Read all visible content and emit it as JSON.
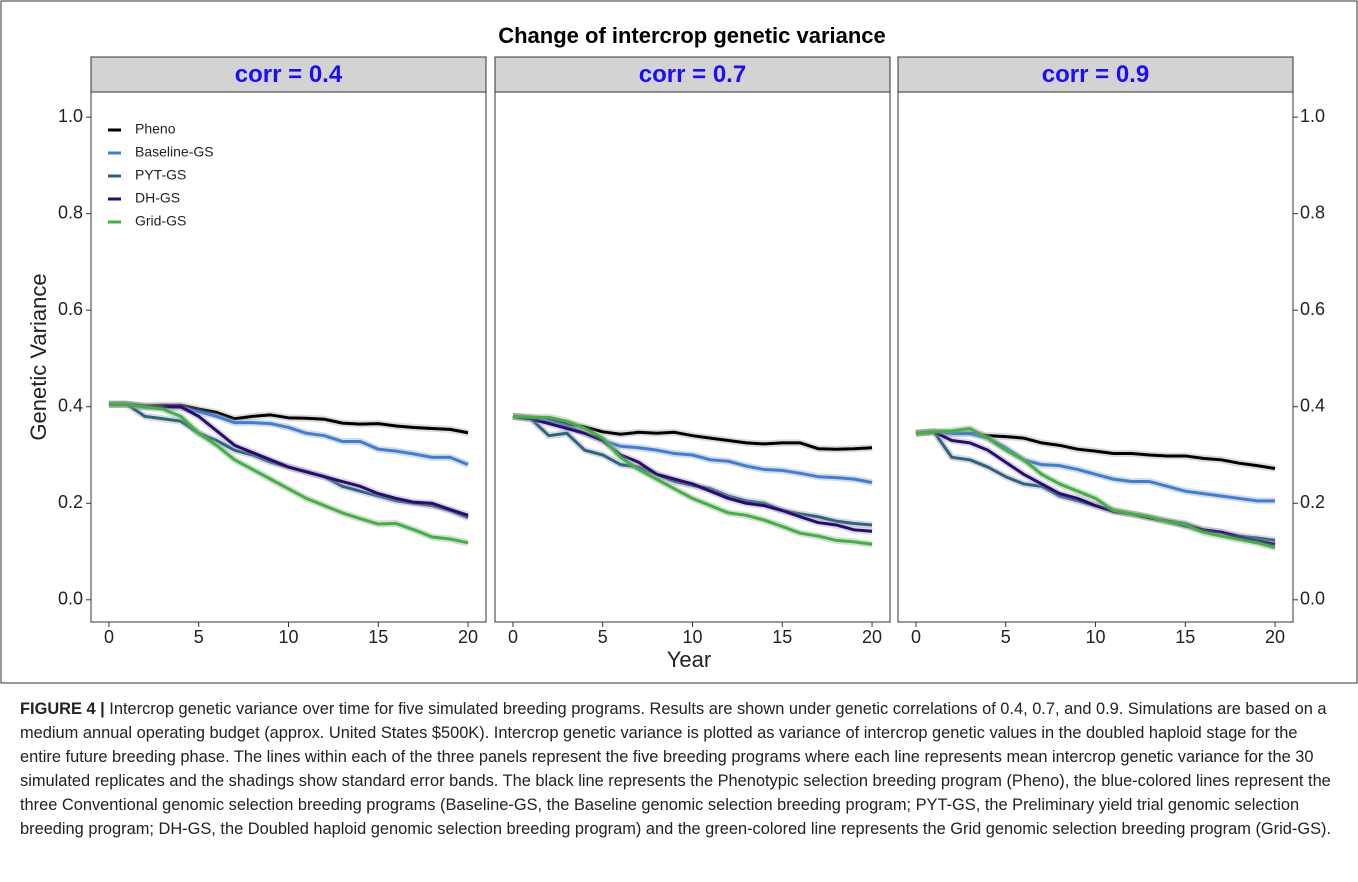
{
  "title": "Change of intercrop genetic variance",
  "x_label": "Year",
  "y_label": "Genetic Variance",
  "chart_data": [
    {
      "type": "line",
      "title": "corr = 0.4",
      "legend": "top-left",
      "x": [
        0,
        1,
        2,
        3,
        4,
        5,
        6,
        7,
        8,
        9,
        10,
        11,
        12,
        13,
        14,
        15,
        16,
        17,
        18,
        19,
        20
      ],
      "xlim": [
        -1,
        21
      ],
      "xticks": [
        0,
        5,
        10,
        15,
        20
      ],
      "ylim": [
        -0.046,
        1.052
      ],
      "yticks": [
        {
          "value": 0,
          "label": "0.0"
        },
        {
          "value": 0.2,
          "label": "0.2"
        },
        {
          "value": 0.4,
          "label": "0.4"
        },
        {
          "value": 0.6,
          "label": "0.6"
        },
        {
          "value": 0.8,
          "label": "0.8"
        },
        {
          "value": 1,
          "label": "1.0"
        }
      ],
      "series": [
        {
          "name": "Pheno",
          "color": "#000000",
          "values": [
            0.405,
            0.405,
            0.402,
            0.403,
            0.403,
            0.395,
            0.388,
            0.375,
            0.38,
            0.383,
            0.377,
            0.376,
            0.374,
            0.366,
            0.364,
            0.365,
            0.36,
            0.357,
            0.355,
            0.353,
            0.346
          ]
        },
        {
          "name": "Baseline-GS",
          "color": "#3a7fe0",
          "values": [
            0.405,
            0.405,
            0.4,
            0.4,
            0.398,
            0.39,
            0.38,
            0.367,
            0.367,
            0.365,
            0.357,
            0.345,
            0.34,
            0.328,
            0.328,
            0.312,
            0.308,
            0.302,
            0.295,
            0.295,
            0.28
          ]
        },
        {
          "name": "PYT-GS",
          "color": "#2a6585",
          "values": [
            0.405,
            0.405,
            0.38,
            0.375,
            0.37,
            0.345,
            0.33,
            0.31,
            0.3,
            0.285,
            0.275,
            0.265,
            0.255,
            0.235,
            0.225,
            0.215,
            0.205,
            0.2,
            0.195,
            0.185,
            0.17
          ]
        },
        {
          "name": "DH-GS",
          "color": "#2a0a7a",
          "values": [
            0.405,
            0.405,
            0.4,
            0.4,
            0.4,
            0.38,
            0.35,
            0.32,
            0.305,
            0.29,
            0.275,
            0.265,
            0.255,
            0.245,
            0.235,
            0.22,
            0.21,
            0.202,
            0.2,
            0.187,
            0.175
          ]
        },
        {
          "name": "Grid-GS",
          "color": "#3cb53c",
          "values": [
            0.405,
            0.405,
            0.4,
            0.395,
            0.38,
            0.345,
            0.32,
            0.29,
            0.27,
            0.25,
            0.23,
            0.21,
            0.195,
            0.18,
            0.168,
            0.157,
            0.158,
            0.145,
            0.13,
            0.126,
            0.118
          ]
        }
      ]
    },
    {
      "type": "line",
      "title": "corr = 0.7",
      "x": [
        0,
        1,
        2,
        3,
        4,
        5,
        6,
        7,
        8,
        9,
        10,
        11,
        12,
        13,
        14,
        15,
        16,
        17,
        18,
        19,
        20
      ],
      "xlim": [
        -1,
        21
      ],
      "xticks": [
        0,
        5,
        10,
        15,
        20
      ],
      "ylim": [
        -0.046,
        1.052
      ],
      "series": [
        {
          "color": "#000000",
          "values": [
            0.38,
            0.377,
            0.372,
            0.365,
            0.358,
            0.348,
            0.343,
            0.347,
            0.345,
            0.347,
            0.34,
            0.335,
            0.33,
            0.325,
            0.323,
            0.325,
            0.325,
            0.313,
            0.312,
            0.313,
            0.315
          ]
        },
        {
          "color": "#3a7fe0",
          "values": [
            0.38,
            0.377,
            0.37,
            0.36,
            0.345,
            0.33,
            0.318,
            0.315,
            0.31,
            0.303,
            0.3,
            0.29,
            0.287,
            0.277,
            0.27,
            0.268,
            0.262,
            0.255,
            0.253,
            0.25,
            0.243
          ]
        },
        {
          "color": "#2a6585",
          "values": [
            0.38,
            0.375,
            0.34,
            0.345,
            0.31,
            0.3,
            0.28,
            0.275,
            0.26,
            0.245,
            0.237,
            0.23,
            0.215,
            0.205,
            0.2,
            0.185,
            0.178,
            0.172,
            0.163,
            0.158,
            0.155
          ]
        },
        {
          "color": "#2a0a7a",
          "values": [
            0.38,
            0.375,
            0.365,
            0.355,
            0.345,
            0.33,
            0.3,
            0.285,
            0.26,
            0.25,
            0.24,
            0.225,
            0.21,
            0.2,
            0.195,
            0.185,
            0.172,
            0.16,
            0.155,
            0.145,
            0.142
          ]
        },
        {
          "color": "#3cb53c",
          "values": [
            0.38,
            0.378,
            0.378,
            0.37,
            0.355,
            0.335,
            0.295,
            0.27,
            0.25,
            0.23,
            0.21,
            0.195,
            0.18,
            0.175,
            0.165,
            0.152,
            0.138,
            0.132,
            0.123,
            0.12,
            0.115
          ]
        }
      ]
    },
    {
      "type": "line",
      "title": "corr = 0.9",
      "x": [
        0,
        1,
        2,
        3,
        4,
        5,
        6,
        7,
        8,
        9,
        10,
        11,
        12,
        13,
        14,
        15,
        16,
        17,
        18,
        19,
        20
      ],
      "xlim": [
        -1,
        21
      ],
      "xticks": [
        0,
        5,
        10,
        15,
        20
      ],
      "ylim": [
        -0.046,
        1.052
      ],
      "yticks": [
        {
          "value": 0,
          "label": "0.0"
        },
        {
          "value": 0.2,
          "label": "0.2"
        },
        {
          "value": 0.4,
          "label": "0.4"
        },
        {
          "value": 0.6,
          "label": "0.6"
        },
        {
          "value": 0.8,
          "label": "0.8"
        },
        {
          "value": 1,
          "label": "1.0"
        }
      ],
      "series": [
        {
          "color": "#000000",
          "values": [
            0.345,
            0.348,
            0.345,
            0.345,
            0.34,
            0.338,
            0.335,
            0.325,
            0.32,
            0.312,
            0.308,
            0.303,
            0.303,
            0.3,
            0.298,
            0.298,
            0.293,
            0.29,
            0.283,
            0.278,
            0.272
          ]
        },
        {
          "color": "#3a7fe0",
          "values": [
            0.345,
            0.348,
            0.345,
            0.345,
            0.335,
            0.315,
            0.29,
            0.28,
            0.278,
            0.27,
            0.26,
            0.25,
            0.245,
            0.245,
            0.235,
            0.225,
            0.22,
            0.215,
            0.21,
            0.205,
            0.205
          ]
        },
        {
          "color": "#2a6585",
          "values": [
            0.345,
            0.348,
            0.295,
            0.29,
            0.275,
            0.255,
            0.24,
            0.235,
            0.215,
            0.205,
            0.195,
            0.185,
            0.178,
            0.17,
            0.163,
            0.158,
            0.145,
            0.14,
            0.132,
            0.128,
            0.123
          ]
        },
        {
          "color": "#2a0a7a",
          "values": [
            0.345,
            0.348,
            0.33,
            0.325,
            0.31,
            0.285,
            0.26,
            0.24,
            0.22,
            0.21,
            0.195,
            0.183,
            0.178,
            0.17,
            0.163,
            0.153,
            0.145,
            0.14,
            0.13,
            0.122,
            0.115
          ]
        },
        {
          "color": "#3cb53c",
          "values": [
            0.345,
            0.348,
            0.35,
            0.355,
            0.335,
            0.31,
            0.29,
            0.26,
            0.24,
            0.225,
            0.21,
            0.185,
            0.178,
            0.172,
            0.162,
            0.155,
            0.14,
            0.132,
            0.125,
            0.118,
            0.108
          ]
        }
      ]
    }
  ],
  "caption": {
    "label": "FIGURE 4 |",
    "text": "Intercrop genetic variance over time for five simulated breeding programs. Results are shown under genetic correlations of 0.4, 0.7, and 0.9. Simulations are based on a medium annual operating budget (approx. United States $500K). Intercrop genetic variance is plotted as variance of intercrop genetic values in the doubled haploid stage for the entire future breeding phase. The lines within each of the three panels represent the five breeding programs where each line represents mean intercrop genetic variance for the 30 simulated replicates and the shadings show standard error bands. The black line represents the Phenotypic selection breeding program (Pheno), the blue-colored lines represent the three Conventional genomic selection breeding programs (Baseline-GS, the Baseline genomic selection breeding program; PYT-GS, the Preliminary yield trial genomic selection breeding program; DH-GS, the Doubled haploid genomic selection breeding program) and the green-colored line represents the Grid genomic selection breeding program (Grid-GS)."
  }
}
